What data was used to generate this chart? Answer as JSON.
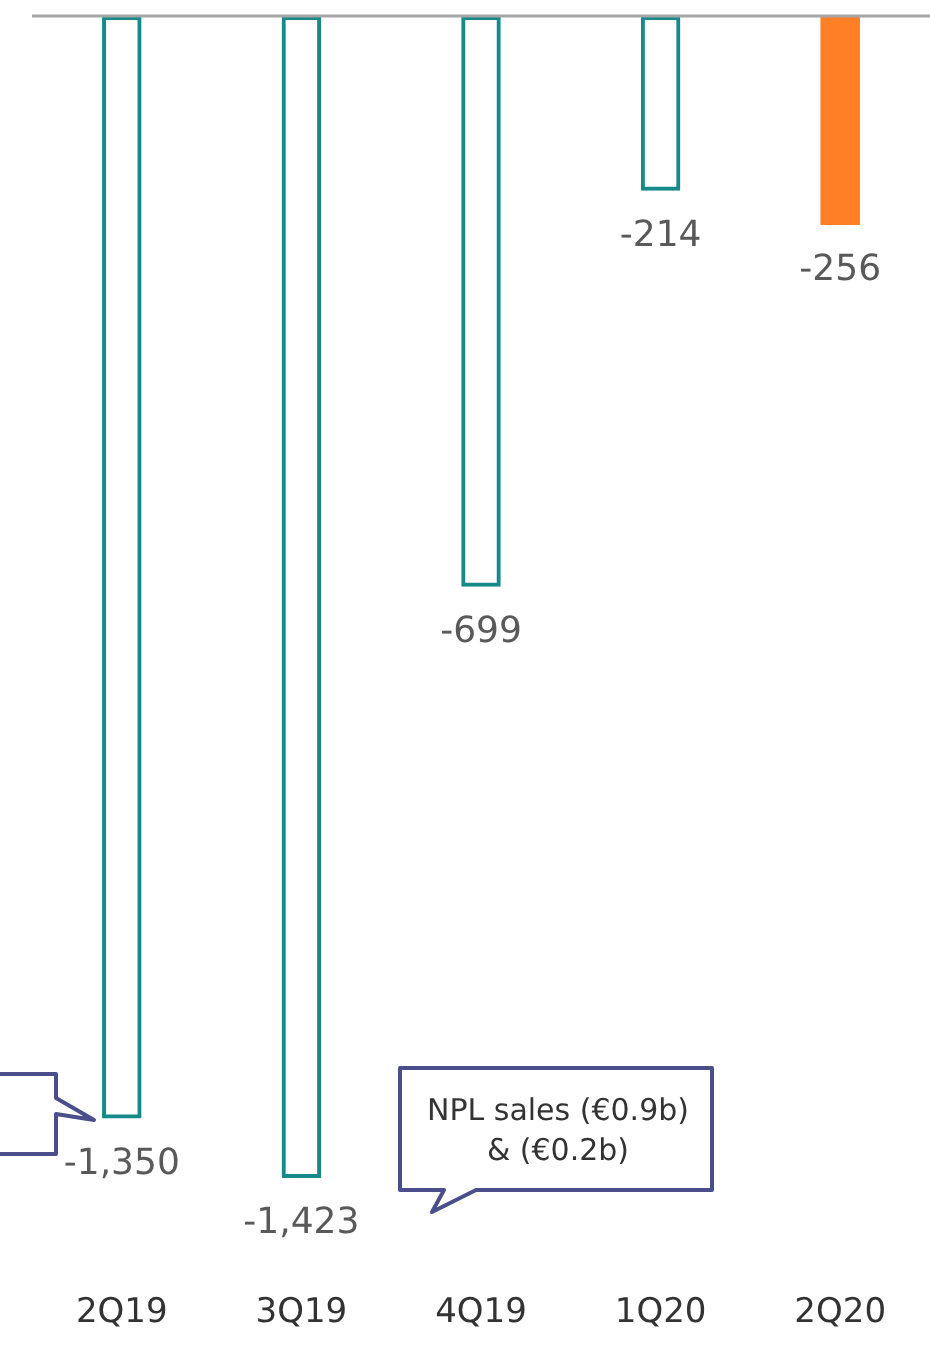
{
  "chart_data": {
    "type": "bar",
    "categories": [
      "2Q19",
      "3Q19",
      "4Q19",
      "1Q20",
      "2Q20"
    ],
    "stacked": true,
    "series": [
      {
        "color": "#168a8a",
        "values": [
          -1350,
          -1423,
          -699,
          -214,
          null
        ],
        "value_labels": [
          "-1,350",
          "-1,423",
          "-699",
          "-214",
          null
        ]
      },
      {
        "color": "#ff7f27",
        "values": [
          null,
          null,
          null,
          null,
          -256
        ],
        "value_labels": [
          null,
          null,
          null,
          null,
          "-256"
        ]
      }
    ],
    "annotations": [
      "NPL sales (€0.9b)\n& (€0.2b)"
    ]
  }
}
